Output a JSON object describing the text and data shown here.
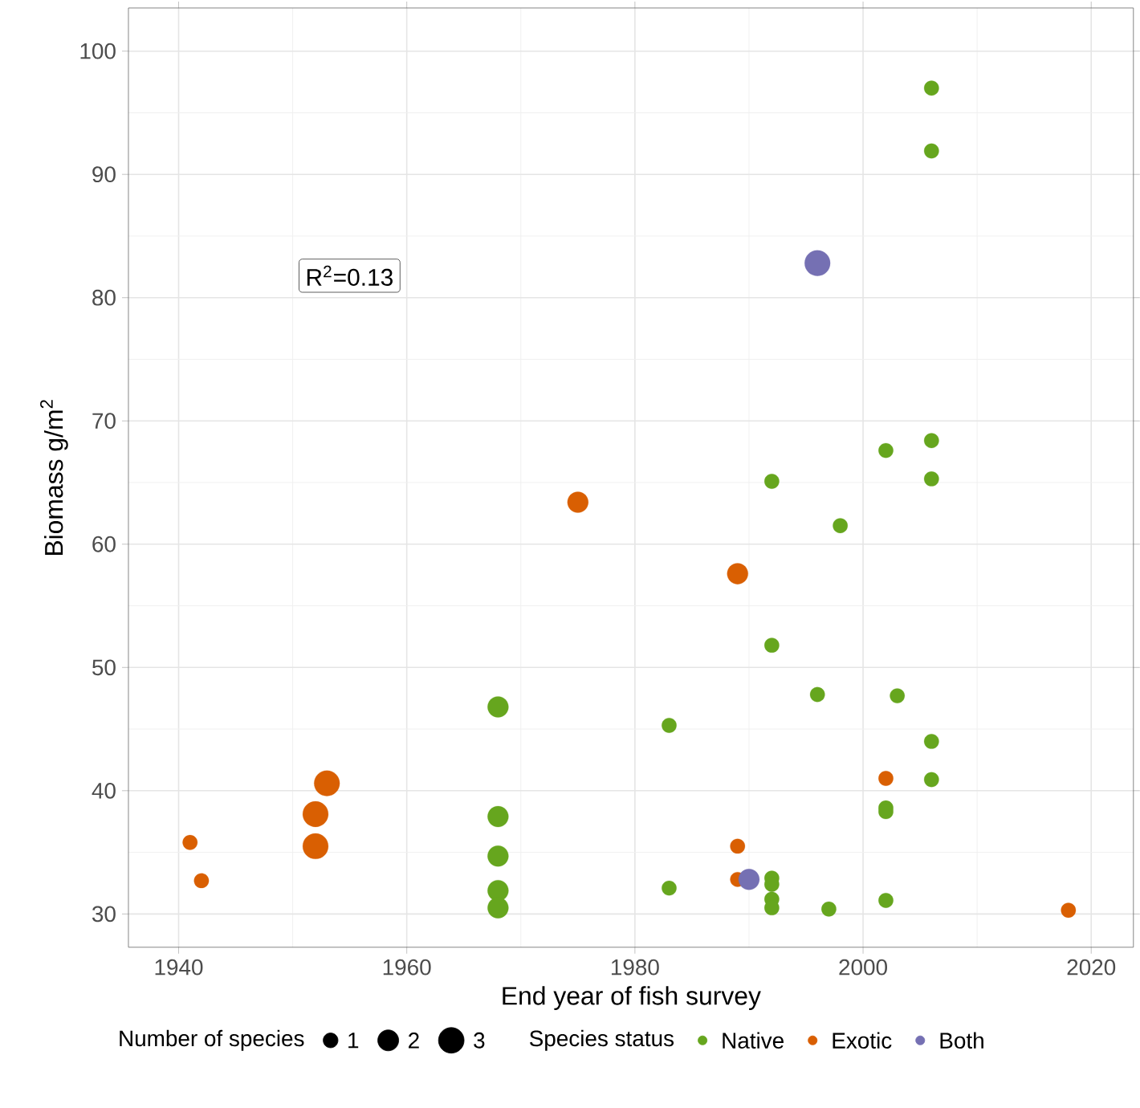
{
  "chart_data": {
    "type": "bubble",
    "xlabel": "End year of fish survey",
    "ylabel": "Biomass g/m$^{2}$",
    "legend_title": "Species status",
    "annotations": [
      "R$^{2}$=0.13",
      "Number of species"
    ],
    "size_legend": [
      1,
      2,
      3
    ],
    "xlim": [
      1935.6,
      2023.7
    ],
    "ylim": [
      27.3,
      103.5
    ],
    "xticks": [
      1940,
      1960,
      1980,
      2000,
      2020
    ],
    "yticks": [
      30,
      40,
      50,
      60,
      70,
      80,
      90,
      100
    ],
    "grid": true,
    "legend": "bottom",
    "marker": "circle",
    "series": [
      {
        "name": "Native",
        "color": "#66a61e",
        "x": [
          1968,
          1968,
          1968,
          1968,
          1968,
          1983,
          1983,
          1992,
          1992,
          1992,
          1992,
          1992,
          1992,
          1996,
          1997,
          1998,
          2002,
          2002,
          2002,
          2002,
          2003,
          2006,
          2006,
          2006,
          2006,
          2006,
          2006
        ],
        "values": [
          46.8,
          37.9,
          34.7,
          31.9,
          30.5,
          45.3,
          32.1,
          65.1,
          51.8,
          32.9,
          32.4,
          31.2,
          30.5,
          47.8,
          30.4,
          61.5,
          67.6,
          38.6,
          38.3,
          31.1,
          47.7,
          97,
          91.9,
          68.4,
          65.3,
          44,
          40.9
        ],
        "sizes": [
          2,
          2,
          2,
          2,
          2,
          1,
          1,
          1,
          1,
          1,
          1,
          1,
          1,
          1,
          1,
          1,
          1,
          1,
          1,
          1,
          1,
          1,
          1,
          1,
          1,
          1,
          1
        ]
      },
      {
        "name": "Exotic",
        "color": "#d95f02",
        "x": [
          1941,
          1942,
          1952,
          1952,
          1953,
          1975,
          1989,
          1989,
          1989,
          2002,
          2018
        ],
        "values": [
          35.8,
          32.7,
          35.5,
          38.1,
          40.6,
          63.4,
          57.6,
          35.5,
          32.8,
          41,
          30.3
        ],
        "sizes": [
          1,
          1,
          3,
          3,
          3,
          2,
          2,
          1,
          1,
          1,
          1
        ]
      },
      {
        "name": "Both",
        "color": "#7570b3",
        "x": [
          1996,
          1990
        ],
        "values": [
          82.8,
          32.8
        ],
        "sizes": [
          3,
          2
        ]
      }
    ]
  }
}
